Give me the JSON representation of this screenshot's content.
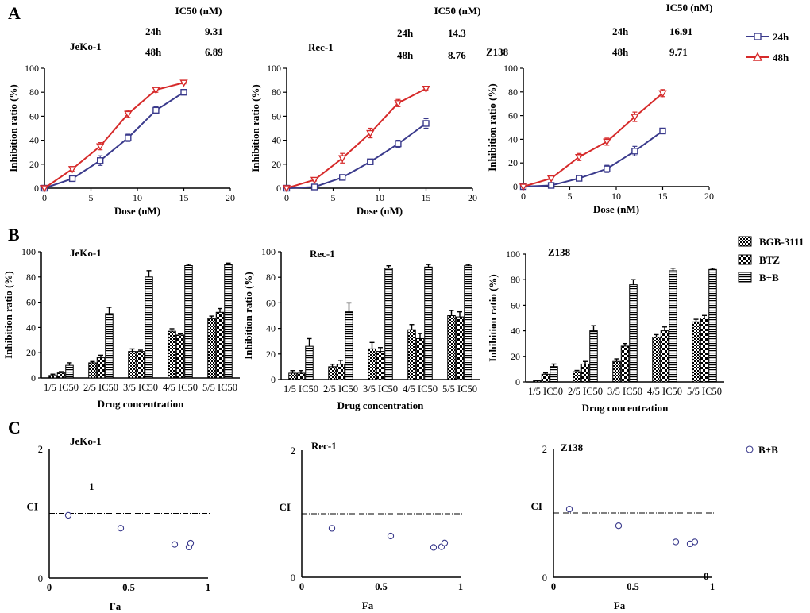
{
  "figure": {
    "panel_labels": [
      "A",
      "B",
      "C"
    ],
    "ic50_header": "IC50 (nM)",
    "legend_line": [
      {
        "label": "24h",
        "color": "#3a3a8c",
        "marker": "square"
      },
      {
        "label": "48h",
        "color": "#d62a2a",
        "marker": "triangle-down"
      }
    ],
    "legend_bar": [
      {
        "label": "BGB-3111",
        "pattern": "checker"
      },
      {
        "label": "BTZ",
        "pattern": "checker-light"
      },
      {
        "label": "B+B",
        "pattern": "stripes"
      }
    ],
    "legend_ci": {
      "label": "B+B",
      "color": "#3a3a8c"
    }
  },
  "chart_data": [
    {
      "type": "line",
      "panel": "A",
      "cell_line": "JeKo-1",
      "ic50": [
        {
          "time": "24h",
          "value": "9.31"
        },
        {
          "time": "48h",
          "value": "6.89"
        }
      ],
      "xlabel": "Dose (nM)",
      "ylabel": "Inhibition ratio (%)",
      "xlim": [
        0,
        20
      ],
      "ylim": [
        0,
        100
      ],
      "xticks": [
        0,
        5,
        10,
        15,
        20
      ],
      "yticks": [
        0,
        20,
        40,
        60,
        80,
        100
      ],
      "x": [
        0,
        3,
        6,
        9,
        12,
        15
      ],
      "series": [
        {
          "name": "24h",
          "values": [
            0,
            8,
            23,
            42,
            65,
            80
          ],
          "errors": [
            0,
            1,
            4,
            3,
            3,
            1
          ]
        },
        {
          "name": "48h",
          "values": [
            0,
            16,
            35,
            62,
            82,
            88
          ],
          "errors": [
            0,
            2,
            3,
            3,
            2,
            1
          ]
        }
      ]
    },
    {
      "type": "line",
      "panel": "A",
      "cell_line": "Rec-1",
      "ic50": [
        {
          "time": "24h",
          "value": "14.3"
        },
        {
          "time": "48h",
          "value": "8.76"
        }
      ],
      "xlabel": "Dose (nM)",
      "ylabel": "Inhibition ratio (%)",
      "xlim": [
        0,
        20
      ],
      "ylim": [
        0,
        100
      ],
      "xticks": [
        0,
        5,
        10,
        15,
        20
      ],
      "yticks": [
        0,
        20,
        40,
        60,
        80,
        100
      ],
      "x": [
        0,
        3,
        6,
        9,
        12,
        15
      ],
      "series": [
        {
          "name": "24h",
          "values": [
            0,
            1,
            9,
            22,
            37,
            54
          ],
          "errors": [
            0,
            1,
            1,
            2,
            3,
            4
          ]
        },
        {
          "name": "48h",
          "values": [
            0,
            7,
            25,
            46,
            71,
            83
          ],
          "errors": [
            0,
            1,
            4,
            4,
            3,
            1
          ]
        }
      ]
    },
    {
      "type": "line",
      "panel": "A",
      "cell_line": "Z138",
      "ic50": [
        {
          "time": "24h",
          "value": "16.91"
        },
        {
          "time": "48h",
          "value": "9.71"
        }
      ],
      "xlabel": "Dose (nM)",
      "ylabel": "Inhibition ratio (%)",
      "xlim": [
        0,
        20
      ],
      "ylim": [
        0,
        100
      ],
      "xticks": [
        0,
        5,
        10,
        15,
        20
      ],
      "yticks": [
        0,
        20,
        40,
        60,
        80,
        100
      ],
      "x": [
        0,
        3,
        6,
        9,
        12,
        15
      ],
      "series": [
        {
          "name": "24h",
          "values": [
            0,
            1,
            7,
            15,
            30,
            47
          ],
          "errors": [
            0,
            1,
            1,
            3,
            4,
            1
          ]
        },
        {
          "name": "48h",
          "values": [
            0,
            7,
            25,
            38,
            59,
            79
          ],
          "errors": [
            0,
            1,
            3,
            3,
            4,
            3
          ]
        }
      ]
    },
    {
      "type": "bar",
      "panel": "B",
      "cell_line": "JeKo-1",
      "categories": [
        "1/5 IC50",
        "2/5 IC50",
        "3/5 IC50",
        "4/5 IC50",
        "5/5 IC50"
      ],
      "xlabel": "Drug concentration",
      "ylabel": "Inhibition ratio (%)",
      "ylim": [
        0,
        100
      ],
      "yticks": [
        0,
        20,
        40,
        60,
        80,
        100
      ],
      "series": [
        {
          "name": "BGB-3111",
          "values": [
            2,
            12,
            21,
            37,
            47
          ],
          "errors": [
            1,
            1,
            2,
            2,
            2
          ]
        },
        {
          "name": "BTZ",
          "values": [
            4,
            16,
            21,
            34,
            52
          ],
          "errors": [
            1,
            2,
            1,
            1,
            3
          ]
        },
        {
          "name": "B+B",
          "values": [
            10,
            51,
            80,
            89,
            90
          ],
          "errors": [
            2,
            5,
            5,
            1,
            1
          ]
        }
      ]
    },
    {
      "type": "bar",
      "panel": "B",
      "cell_line": "Rec-1",
      "categories": [
        "1/5 IC50",
        "2/5 IC50",
        "3/5 IC50",
        "4/5 IC50",
        "5/5 IC50"
      ],
      "xlabel": "Drug concentration",
      "ylabel": "Inhibition ratio (%)",
      "ylim": [
        0,
        100
      ],
      "yticks": [
        0,
        20,
        40,
        60,
        80,
        100
      ],
      "series": [
        {
          "name": "BGB-3111",
          "values": [
            5,
            10,
            24,
            39,
            50
          ],
          "errors": [
            2,
            2,
            5,
            4,
            4
          ]
        },
        {
          "name": "BTZ",
          "values": [
            5,
            12,
            22,
            32,
            49
          ],
          "errors": [
            2,
            3,
            3,
            4,
            4
          ]
        },
        {
          "name": "B+B",
          "values": [
            26,
            53,
            87,
            88,
            89
          ],
          "errors": [
            6,
            7,
            2,
            2,
            1
          ]
        }
      ]
    },
    {
      "type": "bar",
      "panel": "B",
      "cell_line": "Z138",
      "categories": [
        "1/5 IC50",
        "2/5 IC50",
        "3/5 IC50",
        "4/5 IC50",
        "5/5 IC50"
      ],
      "xlabel": "Drug concentration",
      "ylabel": "Inhibition ratio (%)",
      "ylim": [
        0,
        100
      ],
      "yticks": [
        0,
        20,
        40,
        60,
        80,
        100
      ],
      "series": [
        {
          "name": "BGB-3111",
          "values": [
            1,
            8,
            16,
            35,
            47
          ],
          "errors": [
            0,
            1,
            2,
            2,
            2
          ]
        },
        {
          "name": "BTZ",
          "values": [
            6,
            14,
            28,
            40,
            50
          ],
          "errors": [
            1,
            2,
            2,
            3,
            2
          ]
        },
        {
          "name": "B+B",
          "values": [
            12,
            40,
            76,
            87,
            88
          ],
          "errors": [
            2,
            4,
            4,
            2,
            1
          ]
        }
      ]
    },
    {
      "type": "scatter",
      "panel": "C",
      "cell_line": "JeKo-1",
      "xlabel": "Fa",
      "ylabel": "CI",
      "xlim": [
        0,
        1
      ],
      "ylim": [
        0,
        2
      ],
      "xticks": [
        "0",
        "0.5",
        "1"
      ],
      "yticks": [
        "0",
        "2"
      ],
      "annotation": "1",
      "reference_line": 1.0,
      "points": [
        {
          "x": 0.12,
          "y": 0.97
        },
        {
          "x": 0.45,
          "y": 0.77
        },
        {
          "x": 0.79,
          "y": 0.52
        },
        {
          "x": 0.88,
          "y": 0.48
        },
        {
          "x": 0.89,
          "y": 0.54
        }
      ]
    },
    {
      "type": "scatter",
      "panel": "C",
      "cell_line": "Rec-1",
      "xlabel": "Fa",
      "ylabel": "CI",
      "xlim": [
        0,
        1
      ],
      "ylim": [
        0,
        2
      ],
      "xticks": [
        "0",
        "0.5",
        "1"
      ],
      "yticks": [
        "0",
        "2"
      ],
      "reference_line": 1.0,
      "points": [
        {
          "x": 0.19,
          "y": 0.77
        },
        {
          "x": 0.56,
          "y": 0.65
        },
        {
          "x": 0.83,
          "y": 0.47
        },
        {
          "x": 0.88,
          "y": 0.48
        },
        {
          "x": 0.9,
          "y": 0.54
        }
      ]
    },
    {
      "type": "scatter",
      "panel": "C",
      "cell_line": "Z138",
      "xlabel": "Fa",
      "ylabel": "CI",
      "xlim": [
        0,
        1
      ],
      "ylim": [
        0,
        2
      ],
      "xticks": [
        "0",
        "0.5",
        "1"
      ],
      "yticks": [
        "0",
        "2"
      ],
      "annotation": "0",
      "reference_line": 1.0,
      "points": [
        {
          "x": 0.1,
          "y": 1.06
        },
        {
          "x": 0.41,
          "y": 0.8
        },
        {
          "x": 0.77,
          "y": 0.55
        },
        {
          "x": 0.86,
          "y": 0.52
        },
        {
          "x": 0.89,
          "y": 0.55
        }
      ]
    }
  ]
}
